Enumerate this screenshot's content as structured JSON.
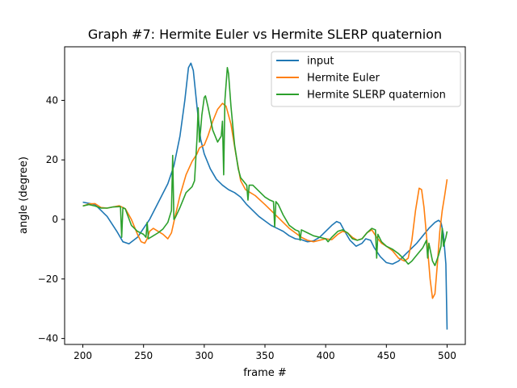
{
  "chart_data": {
    "type": "line",
    "title": "Graph #7: Hermite Euler vs Hermite SLERP quaternion",
    "xlabel": "frame #",
    "ylabel": "angle (degree)",
    "xlim": [
      185,
      515
    ],
    "ylim": [
      -42,
      58
    ],
    "xticks": [
      200,
      250,
      300,
      350,
      400,
      450,
      500
    ],
    "yticks": [
      -40,
      -20,
      0,
      20,
      40
    ],
    "grid": false,
    "legend_position": "top-right",
    "series": [
      {
        "name": "input",
        "color": "#1f77b4",
        "points": [
          [
            200,
            5.8
          ],
          [
            210,
            5
          ],
          [
            220,
            1
          ],
          [
            228,
            -4
          ],
          [
            233,
            -7.5
          ],
          [
            238,
            -8.2
          ],
          [
            245,
            -6
          ],
          [
            250,
            -3
          ],
          [
            255,
            0
          ],
          [
            260,
            4
          ],
          [
            265,
            8
          ],
          [
            270,
            12
          ],
          [
            275,
            18
          ],
          [
            280,
            28
          ],
          [
            284,
            40
          ],
          [
            287,
            51
          ],
          [
            289,
            52.5
          ],
          [
            291,
            50
          ],
          [
            294,
            38
          ],
          [
            297,
            27
          ],
          [
            300,
            22
          ],
          [
            305,
            17
          ],
          [
            310,
            13.5
          ],
          [
            315,
            11.5
          ],
          [
            320,
            10
          ],
          [
            325,
            9
          ],
          [
            330,
            7.5
          ],
          [
            335,
            5
          ],
          [
            340,
            3
          ],
          [
            345,
            1
          ],
          [
            350,
            -0.5
          ],
          [
            355,
            -2
          ],
          [
            360,
            -3
          ],
          [
            365,
            -4
          ],
          [
            370,
            -5.5
          ],
          [
            375,
            -6.5
          ],
          [
            380,
            -6.8
          ],
          [
            385,
            -7.5
          ],
          [
            390,
            -7.2
          ],
          [
            395,
            -6
          ],
          [
            400,
            -4
          ],
          [
            405,
            -2
          ],
          [
            409,
            -0.7
          ],
          [
            412,
            -1.2
          ],
          [
            415,
            -3.5
          ],
          [
            420,
            -7
          ],
          [
            425,
            -9
          ],
          [
            430,
            -8
          ],
          [
            433,
            -6.5
          ],
          [
            437,
            -7
          ],
          [
            440,
            -9.5
          ],
          [
            445,
            -12.5
          ],
          [
            450,
            -14.5
          ],
          [
            455,
            -15
          ],
          [
            460,
            -14
          ],
          [
            465,
            -12
          ],
          [
            470,
            -10
          ],
          [
            475,
            -8
          ],
          [
            480,
            -5.5
          ],
          [
            485,
            -3
          ],
          [
            490,
            -1
          ],
          [
            493,
            -0.3
          ],
          [
            495,
            -1
          ],
          [
            497,
            -5
          ],
          [
            499,
            -15
          ],
          [
            500,
            -37
          ]
        ]
      },
      {
        "name": "Hermite Euler",
        "color": "#ff7f0e",
        "points": [
          [
            200,
            4.5
          ],
          [
            205,
            5.2
          ],
          [
            210,
            5.3
          ],
          [
            215,
            4
          ],
          [
            220,
            3.8
          ],
          [
            225,
            4.2
          ],
          [
            230,
            4.6
          ],
          [
            235,
            3.6
          ],
          [
            240,
            0
          ],
          [
            245,
            -5
          ],
          [
            248,
            -7.5
          ],
          [
            251,
            -8
          ],
          [
            253,
            -6.5
          ],
          [
            255,
            -4
          ],
          [
            258,
            -3
          ],
          [
            262,
            -4
          ],
          [
            266,
            -5
          ],
          [
            270,
            -6.5
          ],
          [
            273,
            -4.5
          ],
          [
            276,
            1
          ],
          [
            280,
            8
          ],
          [
            285,
            15
          ],
          [
            290,
            19.5
          ],
          [
            294,
            22
          ],
          [
            296,
            24
          ],
          [
            298,
            24.5
          ],
          [
            300,
            25
          ],
          [
            303,
            28
          ],
          [
            307,
            33
          ],
          [
            311,
            37
          ],
          [
            315,
            39
          ],
          [
            318,
            38
          ],
          [
            322,
            32
          ],
          [
            326,
            22
          ],
          [
            330,
            13
          ],
          [
            334,
            10
          ],
          [
            338,
            9
          ],
          [
            342,
            8
          ],
          [
            346,
            6.5
          ],
          [
            350,
            5
          ],
          [
            355,
            3
          ],
          [
            360,
            1
          ],
          [
            365,
            -1
          ],
          [
            370,
            -3
          ],
          [
            375,
            -4.5
          ],
          [
            380,
            -6
          ],
          [
            385,
            -7
          ],
          [
            390,
            -7.5
          ],
          [
            395,
            -7
          ],
          [
            400,
            -6.5
          ],
          [
            405,
            -6.8
          ],
          [
            410,
            -5
          ],
          [
            414,
            -4
          ],
          [
            418,
            -4.5
          ],
          [
            422,
            -6
          ],
          [
            426,
            -7
          ],
          [
            430,
            -6.5
          ],
          [
            434,
            -4.5
          ],
          [
            438,
            -3.5
          ],
          [
            442,
            -6
          ],
          [
            446,
            -8
          ],
          [
            450,
            -9
          ],
          [
            455,
            -10.5
          ],
          [
            460,
            -13
          ],
          [
            465,
            -14
          ],
          [
            468,
            -13
          ],
          [
            471,
            -7
          ],
          [
            474,
            3
          ],
          [
            477,
            10.5
          ],
          [
            479,
            10
          ],
          [
            481,
            4
          ],
          [
            484,
            -10
          ],
          [
            486,
            -20
          ],
          [
            488,
            -26.5
          ],
          [
            490,
            -25
          ],
          [
            492,
            -15
          ],
          [
            494,
            -4
          ],
          [
            496,
            3
          ],
          [
            498,
            8
          ],
          [
            500,
            13.5
          ]
        ]
      },
      {
        "name": "Hermite SLERP quaternion",
        "color": "#2ca02c",
        "points": [
          [
            200,
            4.5
          ],
          [
            205,
            5
          ],
          [
            210,
            4.5
          ],
          [
            215,
            3.8
          ],
          [
            220,
            3.8
          ],
          [
            225,
            4.2
          ],
          [
            230,
            4.3
          ],
          [
            231,
            4.3
          ],
          [
            232,
            -6
          ],
          [
            233,
            4
          ],
          [
            235,
            3.5
          ],
          [
            240,
            -2
          ],
          [
            245,
            -4
          ],
          [
            250,
            -5
          ],
          [
            252,
            -6
          ],
          [
            253,
            -1
          ],
          [
            254,
            -6.5
          ],
          [
            258,
            -5.5
          ],
          [
            262,
            -4.5
          ],
          [
            266,
            -3.2
          ],
          [
            270,
            -1
          ],
          [
            273,
            3
          ],
          [
            274,
            21.5
          ],
          [
            275,
            0
          ],
          [
            276,
            0.5
          ],
          [
            280,
            4
          ],
          [
            285,
            9
          ],
          [
            290,
            11
          ],
          [
            292,
            13
          ],
          [
            294,
            27
          ],
          [
            295,
            37.5
          ],
          [
            296,
            26
          ],
          [
            297,
            30
          ],
          [
            298,
            35
          ],
          [
            300,
            41
          ],
          [
            301,
            41.5
          ],
          [
            303,
            38
          ],
          [
            307,
            30
          ],
          [
            311,
            26
          ],
          [
            314,
            28
          ],
          [
            315,
            33
          ],
          [
            316,
            15
          ],
          [
            317,
            40
          ],
          [
            319,
            51
          ],
          [
            320,
            49
          ],
          [
            322,
            38
          ],
          [
            325,
            25
          ],
          [
            328,
            17
          ],
          [
            330,
            14
          ],
          [
            332,
            13
          ],
          [
            334,
            12
          ],
          [
            335,
            11.5
          ],
          [
            336,
            6.5
          ],
          [
            337,
            11.5
          ],
          [
            340,
            11.5
          ],
          [
            345,
            9.5
          ],
          [
            350,
            7.5
          ],
          [
            354,
            6.5
          ],
          [
            357,
            6
          ],
          [
            358,
            -2.5
          ],
          [
            359,
            6
          ],
          [
            361,
            5
          ],
          [
            365,
            1.5
          ],
          [
            370,
            -2
          ],
          [
            375,
            -3.5
          ],
          [
            378,
            -4
          ],
          [
            379,
            -7
          ],
          [
            380,
            -3.5
          ],
          [
            385,
            -4.5
          ],
          [
            390,
            -5.5
          ],
          [
            395,
            -6
          ],
          [
            400,
            -6.5
          ],
          [
            402,
            -7.5
          ],
          [
            405,
            -6
          ],
          [
            410,
            -4
          ],
          [
            414,
            -3.5
          ],
          [
            418,
            -4.5
          ],
          [
            422,
            -6.5
          ],
          [
            426,
            -7
          ],
          [
            430,
            -6.5
          ],
          [
            434,
            -4.5
          ],
          [
            438,
            -3
          ],
          [
            441,
            -3.5
          ],
          [
            442,
            -13
          ],
          [
            443,
            -5
          ],
          [
            446,
            -7.5
          ],
          [
            450,
            -9
          ],
          [
            455,
            -10
          ],
          [
            460,
            -11.5
          ],
          [
            465,
            -13.5
          ],
          [
            468,
            -15
          ],
          [
            471,
            -14
          ],
          [
            475,
            -12
          ],
          [
            480,
            -9.5
          ],
          [
            483,
            -7
          ],
          [
            484,
            -13
          ],
          [
            485,
            -8
          ],
          [
            488,
            -14
          ],
          [
            490,
            -15.5
          ],
          [
            493,
            -12
          ],
          [
            495,
            -9
          ],
          [
            496,
            -3
          ],
          [
            497,
            -9
          ],
          [
            499,
            -6
          ],
          [
            500,
            -4
          ]
        ]
      }
    ]
  }
}
